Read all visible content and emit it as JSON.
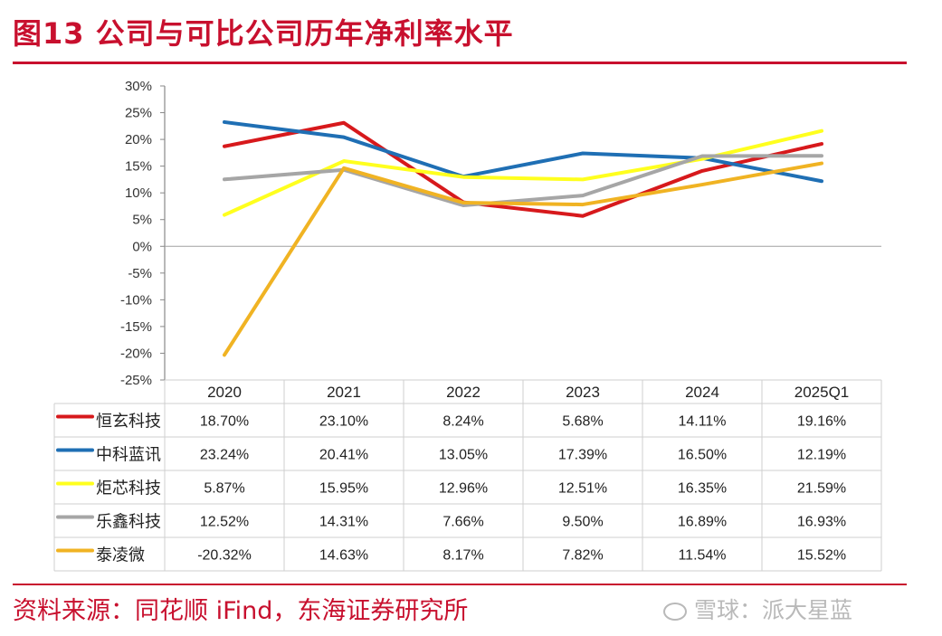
{
  "header": {
    "title": "图13  公司与可比公司历年净利率水平"
  },
  "footer": {
    "source": "资料来源：同花顺 iFind，东海证券研究所",
    "watermark": "雪球：派大星蓝"
  },
  "chart_data": {
    "type": "line",
    "categories": [
      "2020",
      "2021",
      "2022",
      "2023",
      "2024",
      "2025Q1"
    ],
    "yticks": [
      "30%",
      "25%",
      "20%",
      "15%",
      "10%",
      "5%",
      "0%",
      "-5%",
      "-10%",
      "-15%",
      "-20%",
      "-25%"
    ],
    "ylim": [
      -25,
      30
    ],
    "unit": "%",
    "grid": false,
    "legend": "table",
    "series": [
      {
        "name": "恒玄科技",
        "color": "#d7191c",
        "values": [
          18.7,
          23.1,
          8.24,
          5.68,
          14.11,
          19.16
        ],
        "labels": [
          "18.70%",
          "23.10%",
          "8.24%",
          "5.68%",
          "14.11%",
          "19.16%"
        ]
      },
      {
        "name": "中科蓝讯",
        "color": "#1f6fb4",
        "values": [
          23.24,
          20.41,
          13.05,
          17.39,
          16.5,
          12.19
        ],
        "labels": [
          "23.24%",
          "20.41%",
          "13.05%",
          "17.39%",
          "16.50%",
          "12.19%"
        ]
      },
      {
        "name": "炬芯科技",
        "color": "#ffff1e",
        "values": [
          5.87,
          15.95,
          12.96,
          12.51,
          16.35,
          21.59
        ],
        "labels": [
          "5.87%",
          "15.95%",
          "12.96%",
          "12.51%",
          "16.35%",
          "21.59%"
        ]
      },
      {
        "name": "乐鑫科技",
        "color": "#a6a6a6",
        "values": [
          12.52,
          14.31,
          7.66,
          9.5,
          16.89,
          16.93
        ],
        "labels": [
          "12.52%",
          "14.31%",
          "7.66%",
          "9.50%",
          "16.89%",
          "16.93%"
        ]
      },
      {
        "name": "泰凌微",
        "color": "#f0b323",
        "values": [
          -20.32,
          14.63,
          8.17,
          7.82,
          11.54,
          15.52
        ],
        "labels": [
          "-20.32%",
          "14.63%",
          "8.17%",
          "7.82%",
          "11.54%",
          "15.52%"
        ]
      }
    ]
  }
}
